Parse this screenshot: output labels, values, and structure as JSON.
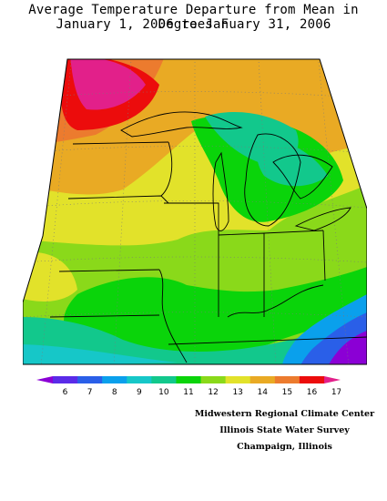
{
  "title": {
    "line1": "Average Temperature Departure from Mean in Degrees F",
    "line2": "January 1, 2006 to January 31, 2006"
  },
  "legend": {
    "values": [
      "6",
      "7",
      "8",
      "9",
      "10",
      "11",
      "12",
      "13",
      "14",
      "15",
      "16",
      "17"
    ],
    "colors": [
      "#8b00d5",
      "#5a2be8",
      "#2a5fe8",
      "#0aa0ec",
      "#16c7c8",
      "#12c88c",
      "#0ad40a",
      "#8ad91a",
      "#e2e22a",
      "#e9aa24",
      "#ec7b2e",
      "#ec0c0c",
      "#e2208a"
    ]
  },
  "credits": {
    "line1": "Midwestern Regional Climate Center",
    "line2": "Illinois State Water Survey",
    "line3": "Champaign, Illinois"
  },
  "map": {
    "region": "Midwest",
    "variable": "temperature-departure-from-mean",
    "units": "degrees F"
  }
}
